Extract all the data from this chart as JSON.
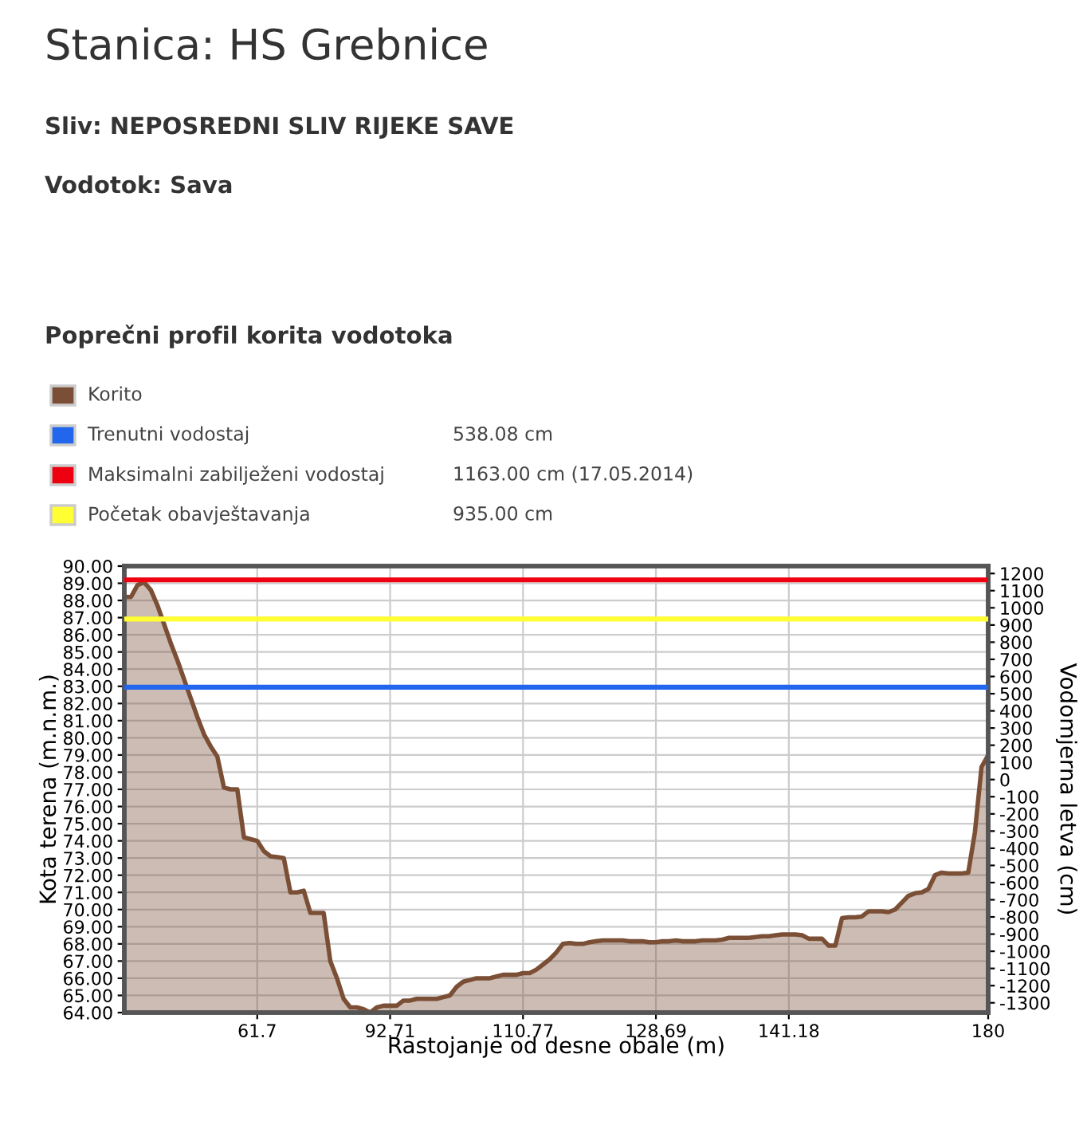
{
  "chart_data": {
    "type": "area",
    "title": "Stanica: HS Grebnice",
    "subtitle": "Sliv: NEPOSREDNI SLIV RIJEKE SAVE",
    "annotations": [
      "Vodotok: Sava",
      "Poprečni profil korita vodotoka",
      "538.08 cm",
      "1163.00 cm (17.05.2014)",
      "935.00 cm"
    ],
    "xlabel": "Rastojanje od desne obale (m)",
    "ylabel": "Kota terena (m.n.m.)",
    "y2label": "Vodomjerna letva (cm)",
    "categories": [
      null,
      null,
      null,
      null,
      null,
      null,
      null,
      null,
      null,
      null,
      null,
      null,
      null,
      null,
      null,
      null,
      null,
      null,
      null,
      null,
      "61.7",
      null,
      null,
      null,
      null,
      null,
      null,
      null,
      null,
      null,
      null,
      null,
      null,
      null,
      null,
      null,
      null,
      null,
      null,
      null,
      "92.71",
      null,
      null,
      null,
      null,
      null,
      null,
      null,
      null,
      null,
      null,
      null,
      null,
      null,
      null,
      null,
      null,
      null,
      null,
      null,
      "110.77",
      null,
      null,
      null,
      null,
      null,
      null,
      null,
      null,
      null,
      null,
      null,
      null,
      null,
      null,
      null,
      null,
      null,
      null,
      null,
      "128.69",
      null,
      null,
      null,
      null,
      null,
      null,
      null,
      null,
      null,
      null,
      null,
      null,
      null,
      null,
      null,
      null,
      null,
      null,
      null,
      "141.18",
      null,
      null,
      null,
      null,
      null,
      null,
      null,
      null,
      null,
      null,
      null,
      null,
      null,
      null,
      null,
      null,
      null,
      null,
      null,
      null,
      null,
      null,
      null,
      null,
      null,
      null,
      null,
      null,
      null,
      "180"
    ],
    "series": [
      {
        "name": "Korito",
        "color": "#7b4f36",
        "values": [
          88.2,
          88.2,
          88.9,
          89.05,
          88.6,
          87.7,
          86.6,
          85.5,
          84.5,
          83.4,
          82.3,
          81.2,
          80.2,
          79.5,
          78.9,
          77.1,
          77.0,
          77.0,
          74.2,
          74.1,
          74.0,
          73.4,
          73.1,
          73.05,
          73.0,
          71.0,
          71.0,
          71.1,
          69.8,
          69.8,
          69.8,
          67.0,
          66.0,
          64.8,
          64.3,
          64.3,
          64.2,
          64.0,
          64.3,
          64.4,
          64.4,
          64.4,
          64.7,
          64.7,
          64.8,
          64.8,
          64.8,
          64.8,
          64.9,
          65.0,
          65.5,
          65.8,
          65.9,
          66.0,
          66.0,
          66.0,
          66.1,
          66.2,
          66.2,
          66.2,
          66.3,
          66.3,
          66.5,
          66.8,
          67.1,
          67.5,
          68.0,
          68.05,
          68.0,
          68.0,
          68.1,
          68.15,
          68.2,
          68.2,
          68.2,
          68.2,
          68.15,
          68.15,
          68.15,
          68.1,
          68.1,
          68.15,
          68.15,
          68.2,
          68.15,
          68.15,
          68.15,
          68.2,
          68.2,
          68.2,
          68.25,
          68.35,
          68.35,
          68.35,
          68.35,
          68.4,
          68.45,
          68.45,
          68.5,
          68.55,
          68.55,
          68.55,
          68.5,
          68.3,
          68.3,
          68.3,
          67.9,
          67.9,
          69.5,
          69.55,
          69.55,
          69.6,
          69.9,
          69.9,
          69.9,
          69.85,
          70.0,
          70.4,
          70.8,
          70.95,
          71.0,
          71.2,
          72.0,
          72.15,
          72.1,
          72.1,
          72.1,
          72.15,
          74.5,
          78.3,
          79.0
        ]
      }
    ],
    "ref_lines": [
      {
        "axis": "y2",
        "value": 538.08,
        "label": "Trenutni vodostaj",
        "color": "#2266ee"
      },
      {
        "axis": "y2",
        "value": 1163,
        "label": "Maksimalni zabilježeni vodostaj",
        "color": "#ee0011"
      },
      {
        "axis": "y2",
        "value": 935,
        "label": "Početak obavještavanja",
        "color": "#ffff33"
      }
    ],
    "ylim": [
      64,
      90
    ],
    "yticks": [
      {
        "value": 64,
        "label": "64.00"
      },
      {
        "value": 65,
        "label": "65.00"
      },
      {
        "value": 66,
        "label": "66.00"
      },
      {
        "value": 67,
        "label": "67.00"
      },
      {
        "value": 68,
        "label": "68.00"
      },
      {
        "value": 69,
        "label": "69.00"
      },
      {
        "value": 70,
        "label": "70.00"
      },
      {
        "value": 71,
        "label": "71.00"
      },
      {
        "value": 72,
        "label": "72.00"
      },
      {
        "value": 73,
        "label": "73.00"
      },
      {
        "value": 74,
        "label": "74.00"
      },
      {
        "value": 75,
        "label": "75.00"
      },
      {
        "value": 76,
        "label": "76.00"
      },
      {
        "value": 77,
        "label": "77.00"
      },
      {
        "value": 78,
        "label": "78.00"
      },
      {
        "value": 79,
        "label": "79.00"
      },
      {
        "value": 80,
        "label": "80.00"
      },
      {
        "value": 81,
        "label": "81.00"
      },
      {
        "value": 82,
        "label": "82.00"
      },
      {
        "value": 83,
        "label": "83.00"
      },
      {
        "value": 84,
        "label": "84.00"
      },
      {
        "value": 85,
        "label": "85.00"
      },
      {
        "value": 86,
        "label": "86.00"
      },
      {
        "value": 87,
        "label": "87.00"
      },
      {
        "value": 88,
        "label": "88.00"
      },
      {
        "value": 89,
        "label": "89.00"
      },
      {
        "value": 90,
        "label": "90.00"
      }
    ],
    "y2lim": [
      -1357,
      1243
    ],
    "y2ticks": [
      -1300,
      -1200,
      -1100,
      -1000,
      -900,
      -800,
      -700,
      -600,
      -500,
      -400,
      -300,
      -200,
      -100,
      0,
      100,
      200,
      300,
      400,
      500,
      600,
      700,
      800,
      900,
      1000,
      1100,
      1200
    ],
    "grid": true,
    "legend": "top"
  }
}
